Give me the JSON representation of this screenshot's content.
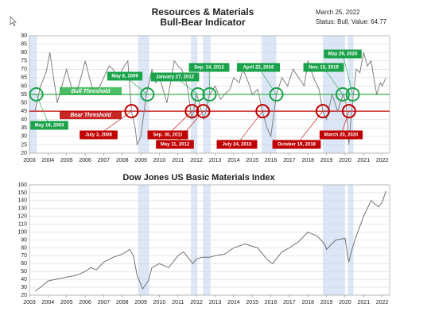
{
  "chart_data": [
    {
      "type": "line",
      "title": "Resources & Materials",
      "subtitle": "Bull-Bear Indicator",
      "annotations": [
        "March 25, 2022",
        "Status: Bull, Value: 64.77"
      ],
      "xlim": [
        2003,
        2022.4
      ],
      "xticks": [
        2003,
        2004,
        2005,
        2006,
        2007,
        2008,
        2009,
        2010,
        2011,
        2012,
        2013,
        2014,
        2015,
        2016,
        2017,
        2018,
        2019,
        2020,
        2021,
        2022
      ],
      "ylim": [
        20,
        90
      ],
      "yticks": [
        20,
        25,
        30,
        35,
        40,
        45,
        50,
        55,
        60,
        65,
        70,
        75,
        80,
        85,
        90
      ],
      "grid": true,
      "bands": [
        [
          2003.0,
          2003.4
        ],
        [
          2008.85,
          2009.45
        ],
        [
          2011.7,
          2012.05
        ],
        [
          2012.35,
          2012.75
        ],
        [
          2015.5,
          2016.3
        ],
        [
          2018.8,
          2020.0
        ],
        [
          2020.15,
          2020.45
        ]
      ],
      "band_color": "#dbe6f6",
      "thresholds": [
        {
          "name": "Bull Threshold",
          "value": 55,
          "color": "#2db34a"
        },
        {
          "name": "Bear Threshold",
          "value": 45,
          "color": "#c00000"
        }
      ],
      "series": [
        {
          "name": "Bull-Bear Indicator",
          "color": "#808080",
          "x": [
            2003.3,
            2003.6,
            2003.9,
            2004.1,
            2004.3,
            2004.5,
            2004.8,
            2005.0,
            2005.3,
            2005.5,
            2005.8,
            2006.0,
            2006.3,
            2006.5,
            2006.8,
            2007.0,
            2007.3,
            2007.5,
            2007.8,
            2008.0,
            2008.3,
            2008.5,
            2008.7,
            2008.8,
            2009.0,
            2009.3,
            2009.6,
            2009.8,
            2010.0,
            2010.2,
            2010.4,
            2010.6,
            2010.8,
            2011.0,
            2011.2,
            2011.5,
            2011.75,
            2012.0,
            2012.2,
            2012.4,
            2012.7,
            2013.0,
            2013.3,
            2013.5,
            2013.8,
            2014.0,
            2014.3,
            2014.5,
            2014.8,
            2015.0,
            2015.3,
            2015.55,
            2015.8,
            2016.0,
            2016.3,
            2016.6,
            2016.9,
            2017.2,
            2017.5,
            2017.8,
            2018.0,
            2018.3,
            2018.6,
            2018.8,
            2019.0,
            2019.3,
            2019.6,
            2019.9,
            2020.05,
            2020.2,
            2020.4,
            2020.6,
            2020.8,
            2021.0,
            2021.2,
            2021.4,
            2021.7,
            2021.9,
            2022.0,
            2022.2
          ],
          "values": [
            45,
            60,
            68,
            80,
            65,
            50,
            62,
            70,
            58,
            55,
            66,
            75,
            62,
            55,
            60,
            65,
            72,
            70,
            64,
            70,
            75,
            45,
            35,
            25,
            30,
            55,
            70,
            62,
            65,
            58,
            50,
            62,
            75,
            72,
            70,
            60,
            40,
            55,
            48,
            40,
            55,
            60,
            52,
            55,
            58,
            65,
            62,
            70,
            62,
            55,
            58,
            45,
            35,
            30,
            55,
            65,
            60,
            70,
            65,
            60,
            75,
            65,
            58,
            45,
            40,
            55,
            45,
            55,
            50,
            25,
            50,
            70,
            68,
            80,
            72,
            75,
            55,
            62,
            60,
            65
          ]
        }
      ],
      "signals": [
        {
          "label": "May 16, 2003",
          "x": 2003.37,
          "y": 55,
          "color": "#1aa34a"
        },
        {
          "label": "July 3, 2008",
          "x": 2008.5,
          "y": 45,
          "color": "#c00000"
        },
        {
          "label": "May 8, 2009",
          "x": 2009.35,
          "y": 55,
          "color": "#1aa34a"
        },
        {
          "label": "January 27, 2012",
          "x": 2012.07,
          "y": 55,
          "color": "#1aa34a"
        },
        {
          "label": "Sep. 14, 2012",
          "x": 2012.7,
          "y": 55,
          "color": "#1aa34a"
        },
        {
          "label": "Sep. 30, 2011",
          "x": 2011.75,
          "y": 45,
          "color": "#c00000"
        },
        {
          "label": "May 11, 2012",
          "x": 2012.36,
          "y": 45,
          "color": "#c00000"
        },
        {
          "label": "July 24, 2015",
          "x": 2015.56,
          "y": 45,
          "color": "#c00000"
        },
        {
          "label": "April 22, 2016",
          "x": 2016.3,
          "y": 55,
          "color": "#1aa34a"
        },
        {
          "label": "October 19, 2018",
          "x": 2018.8,
          "y": 45,
          "color": "#c00000"
        },
        {
          "label": "Nov. 15, 2019",
          "x": 2019.87,
          "y": 55,
          "color": "#1aa34a"
        },
        {
          "label": "May 29, 2020",
          "x": 2020.41,
          "y": 55,
          "color": "#1aa34a"
        },
        {
          "label": "March 20, 2020",
          "x": 2020.21,
          "y": 45,
          "color": "#c00000"
        }
      ]
    },
    {
      "type": "line",
      "title": "Dow Jones US Basic Materials Index",
      "xlim": [
        2003,
        2022.4
      ],
      "xticks": [
        2003,
        2004,
        2005,
        2006,
        2007,
        2008,
        2009,
        2010,
        2011,
        2012,
        2013,
        2014,
        2015,
        2016,
        2017,
        2018,
        2019,
        2020,
        2021,
        2022
      ],
      "ylim": [
        20,
        160
      ],
      "yticks": [
        20,
        30,
        40,
        50,
        60,
        70,
        80,
        90,
        100,
        110,
        120,
        130,
        140,
        150,
        160
      ],
      "grid": true,
      "bands": [
        [
          2008.85,
          2009.45
        ],
        [
          2011.7,
          2012.05
        ],
        [
          2012.35,
          2012.75
        ],
        [
          2018.8,
          2020.0
        ],
        [
          2020.15,
          2020.45
        ]
      ],
      "band_color": "#dbe6f6",
      "series": [
        {
          "name": "Dow Jones US Basic Materials Index",
          "color": "#707070",
          "x": [
            2003.3,
            2003.6,
            2004.0,
            2004.4,
            2004.8,
            2005.0,
            2005.5,
            2006.0,
            2006.3,
            2006.6,
            2007.0,
            2007.5,
            2008.0,
            2008.4,
            2008.6,
            2008.8,
            2009.1,
            2009.4,
            2009.6,
            2010.0,
            2010.5,
            2011.0,
            2011.3,
            2011.8,
            2012.0,
            2012.3,
            2012.7,
            2013.0,
            2013.5,
            2014.0,
            2014.6,
            2015.0,
            2015.3,
            2015.8,
            2016.1,
            2016.6,
            2017.0,
            2017.5,
            2018.0,
            2018.5,
            2018.9,
            2019.0,
            2019.5,
            2020.0,
            2020.2,
            2020.4,
            2020.6,
            2021.0,
            2021.4,
            2021.8,
            2022.0,
            2022.2
          ],
          "values": [
            25,
            30,
            38,
            40,
            42,
            43,
            45,
            50,
            55,
            52,
            62,
            68,
            72,
            78,
            70,
            45,
            28,
            38,
            55,
            60,
            55,
            70,
            75,
            60,
            66,
            68,
            68,
            70,
            72,
            80,
            85,
            82,
            80,
            65,
            60,
            75,
            80,
            88,
            100,
            95,
            85,
            78,
            90,
            92,
            62,
            80,
            95,
            120,
            140,
            132,
            138,
            152
          ]
        }
      ]
    }
  ]
}
